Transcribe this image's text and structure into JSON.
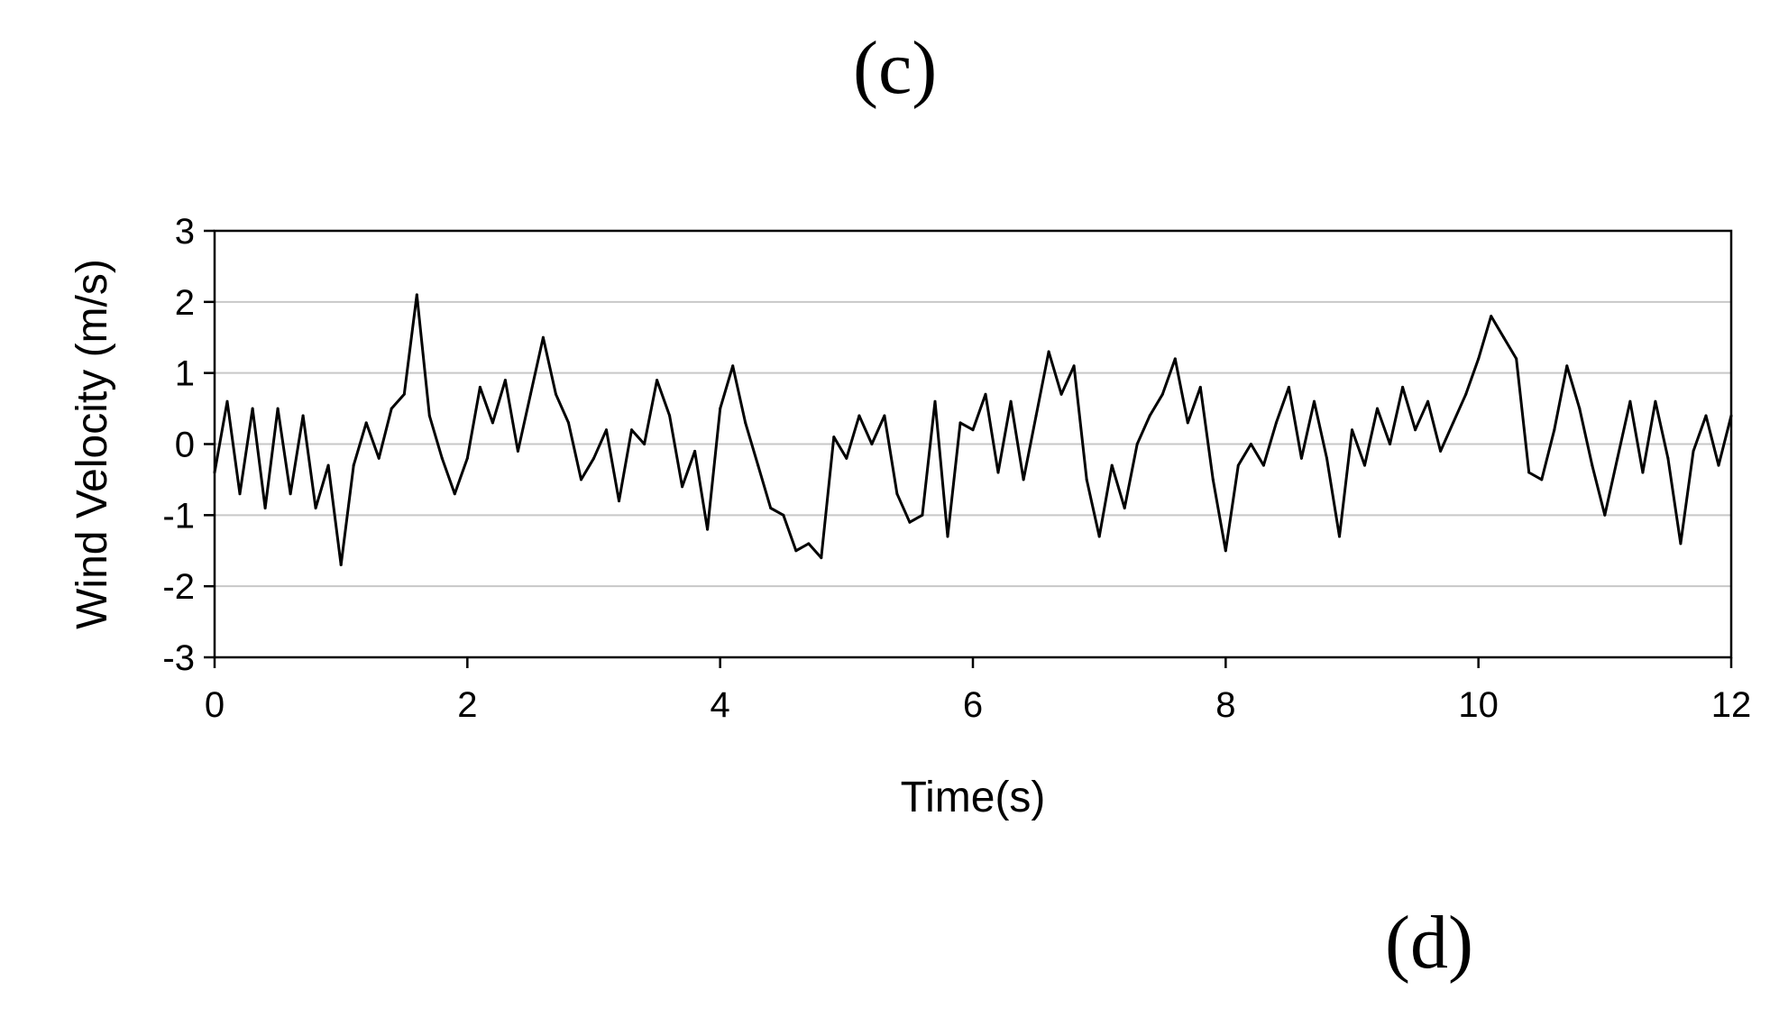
{
  "panels": {
    "top_label": "(c)",
    "bottom_label": "(d)"
  },
  "colors": {
    "line": "#000000",
    "grid": "#c8c8c8",
    "axis": "#000000",
    "background": "#ffffff"
  },
  "chart_data": {
    "type": "line",
    "title": "",
    "xlabel": "Time(s)",
    "ylabel": "Wind Velocity (m/s)",
    "xlim": [
      0,
      12
    ],
    "ylim": [
      -3,
      3
    ],
    "xticks": [
      0,
      2,
      4,
      6,
      8,
      10,
      12
    ],
    "yticks": [
      3,
      2,
      1,
      0,
      -1,
      -2,
      -3
    ],
    "grid": "horizontal",
    "legend": "none",
    "series": [
      {
        "x": [
          0.0,
          0.1,
          0.2,
          0.3,
          0.4,
          0.5,
          0.6,
          0.7,
          0.8,
          0.9,
          1.0,
          1.1,
          1.2,
          1.3,
          1.4,
          1.5,
          1.6,
          1.7,
          1.8,
          1.9,
          2.0,
          2.1,
          2.2,
          2.3,
          2.4,
          2.5,
          2.6,
          2.7,
          2.8,
          2.9,
          3.0,
          3.1,
          3.2,
          3.3,
          3.4,
          3.5,
          3.6,
          3.7,
          3.8,
          3.9,
          4.0,
          4.1,
          4.2,
          4.3,
          4.4,
          4.5,
          4.6,
          4.7,
          4.8,
          4.9,
          5.0,
          5.1,
          5.2,
          5.3,
          5.4,
          5.5,
          5.6,
          5.7,
          5.8,
          5.9,
          6.0,
          6.1,
          6.2,
          6.3,
          6.4,
          6.5,
          6.6,
          6.7,
          6.8,
          6.9,
          7.0,
          7.1,
          7.2,
          7.3,
          7.4,
          7.5,
          7.6,
          7.7,
          7.8,
          7.9,
          8.0,
          8.1,
          8.2,
          8.3,
          8.4,
          8.5,
          8.6,
          8.7,
          8.8,
          8.9,
          9.0,
          9.1,
          9.2,
          9.3,
          9.4,
          9.5,
          9.6,
          9.7,
          9.8,
          9.9,
          10.0,
          10.1,
          10.2,
          10.3,
          10.4,
          10.5,
          10.6,
          10.7,
          10.8,
          10.9,
          11.0,
          11.1,
          11.2,
          11.3,
          11.4,
          11.5,
          11.6,
          11.7,
          11.8,
          11.9,
          12.0
        ],
        "values": [
          -0.4,
          0.6,
          -0.7,
          0.5,
          -0.9,
          0.5,
          -0.7,
          0.4,
          -0.9,
          -0.3,
          -1.7,
          -0.3,
          0.3,
          -0.2,
          0.5,
          0.7,
          2.1,
          0.4,
          -0.2,
          -0.7,
          -0.2,
          0.8,
          0.3,
          0.9,
          -0.1,
          0.7,
          1.5,
          0.7,
          0.3,
          -0.5,
          -0.2,
          0.2,
          -0.8,
          0.2,
          0.0,
          0.9,
          0.4,
          -0.6,
          -0.1,
          -1.2,
          0.5,
          1.1,
          0.3,
          -0.3,
          -0.9,
          -1.0,
          -1.5,
          -1.4,
          -1.6,
          0.1,
          -0.2,
          0.4,
          0.0,
          0.4,
          -0.7,
          -1.1,
          -1.0,
          0.6,
          -1.3,
          0.3,
          0.2,
          0.7,
          -0.4,
          0.6,
          -0.5,
          0.4,
          1.3,
          0.7,
          1.1,
          -0.5,
          -1.3,
          -0.3,
          -0.9,
          0.0,
          0.4,
          0.7,
          1.2,
          0.3,
          0.8,
          -0.5,
          -1.5,
          -0.3,
          0.0,
          -0.3,
          0.3,
          0.8,
          -0.2,
          0.6,
          -0.2,
          -1.3,
          0.2,
          -0.3,
          0.5,
          0.0,
          0.8,
          0.2,
          0.6,
          -0.1,
          0.3,
          0.7,
          1.2,
          1.8,
          1.5,
          1.2,
          -0.4,
          -0.5,
          0.2,
          1.1,
          0.5,
          -0.3,
          -1.0,
          -0.2,
          0.6,
          -0.4,
          0.6,
          -0.2,
          -1.4,
          -0.1,
          0.4,
          -0.3,
          0.4
        ]
      }
    ]
  }
}
